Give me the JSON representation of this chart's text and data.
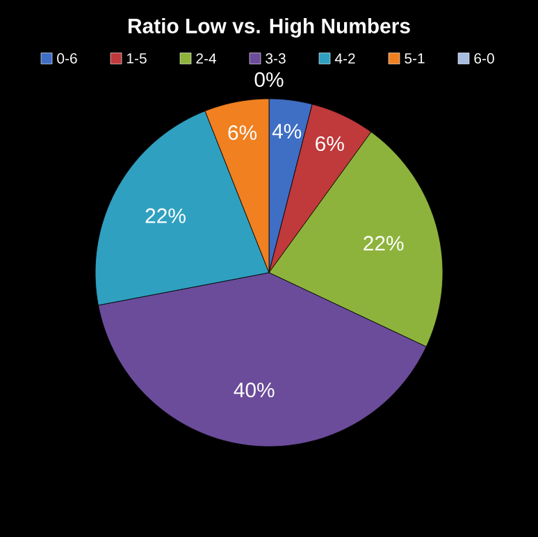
{
  "chart_data": {
    "type": "pie",
    "title": "Ratio Low vs. High Numbers",
    "categories": [
      "0-6",
      "1-5",
      "2-4",
      "3-3",
      "4-2",
      "5-1",
      "6-0"
    ],
    "values": [
      4,
      6,
      22,
      40,
      22,
      6,
      0
    ],
    "colors": [
      "#3f6fc4",
      "#c0393b",
      "#8db33c",
      "#6b4c9a",
      "#30a0c0",
      "#f08020",
      "#a8bde0"
    ],
    "value_labels": [
      "4%",
      "6%",
      "22%",
      "40%",
      "22%",
      "6%",
      "0%"
    ],
    "legend": "top"
  }
}
